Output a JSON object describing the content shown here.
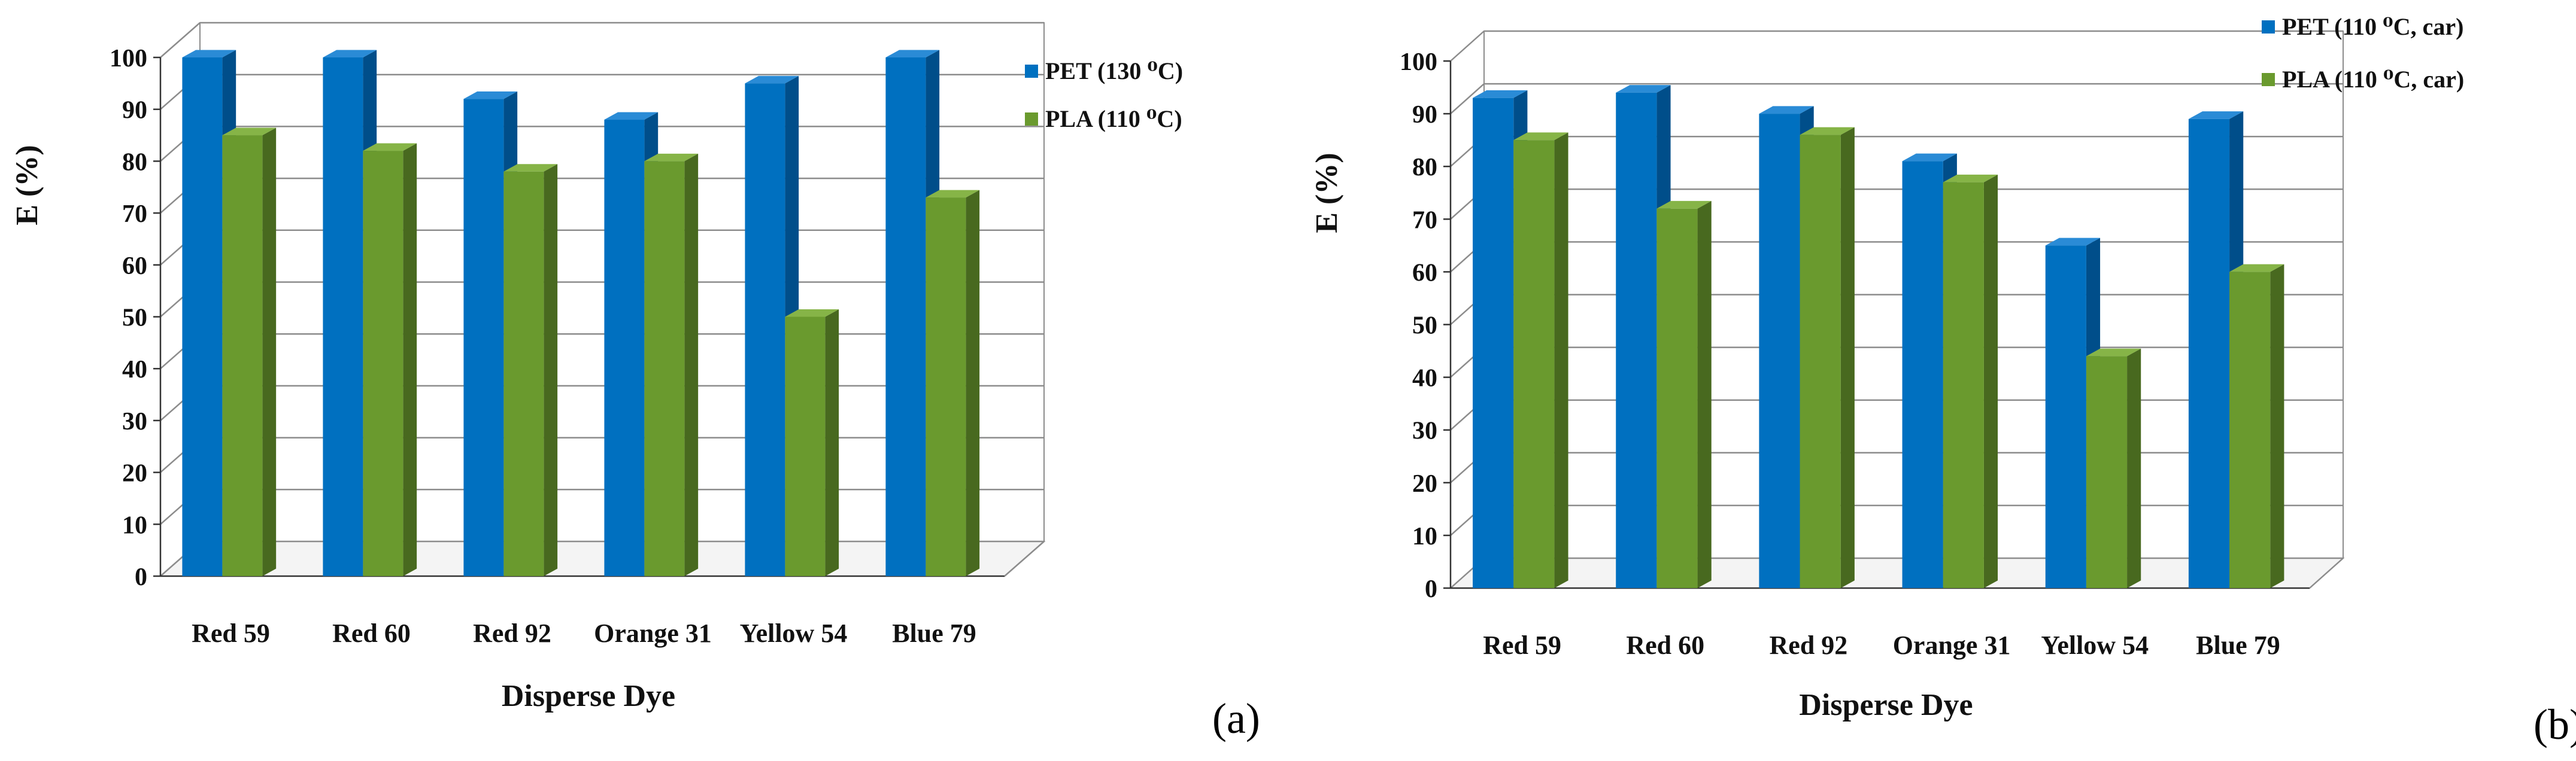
{
  "colors": {
    "pet_front": "#0070C0",
    "pet_side": "#004E8A",
    "pet_top": "#2A8BD6",
    "pla_front": "#6A9A2E",
    "pla_side": "#48691F",
    "pla_top": "#86B447",
    "grid": "#8C8C8C"
  },
  "chart_data": [
    {
      "panel": "(a)",
      "type": "bar",
      "xlabel": "Disperse Dye",
      "ylabel": "E (%)",
      "ylim": [
        0,
        100
      ],
      "yticks": [
        "0",
        "10",
        "20",
        "30",
        "40",
        "50",
        "60",
        "70",
        "80",
        "90",
        "100"
      ],
      "categories": [
        "Red 59",
        "Red 60",
        "Red 92",
        "Orange 31",
        "Yellow 54",
        "Blue 79"
      ],
      "legend_position": "right",
      "series": [
        {
          "name": "PET (130 ⁰C)",
          "color": "pet",
          "values": [
            100,
            100,
            92,
            88,
            95,
            100
          ]
        },
        {
          "name": "PLA (110 ⁰C)",
          "color": "pla",
          "values": [
            85,
            82,
            78,
            80,
            50,
            73
          ]
        }
      ]
    },
    {
      "panel": "(b)",
      "type": "bar",
      "xlabel": "Disperse Dye",
      "ylabel": "E (%)",
      "ylim": [
        0,
        100
      ],
      "yticks": [
        "0",
        "10",
        "20",
        "30",
        "40",
        "50",
        "60",
        "70",
        "80",
        "90",
        "100"
      ],
      "categories": [
        "Red 59",
        "Red 60",
        "Red 92",
        "Orange 31",
        "Yellow 54",
        "Blue 79"
      ],
      "legend_position": "top-right",
      "series": [
        {
          "name": "PET (110 ⁰C, car)",
          "color": "pet",
          "values": [
            93,
            94,
            90,
            81,
            65,
            89
          ]
        },
        {
          "name": "PLA (110 ⁰C, car)",
          "color": "pla",
          "values": [
            85,
            72,
            86,
            77,
            44,
            60
          ]
        }
      ]
    }
  ]
}
